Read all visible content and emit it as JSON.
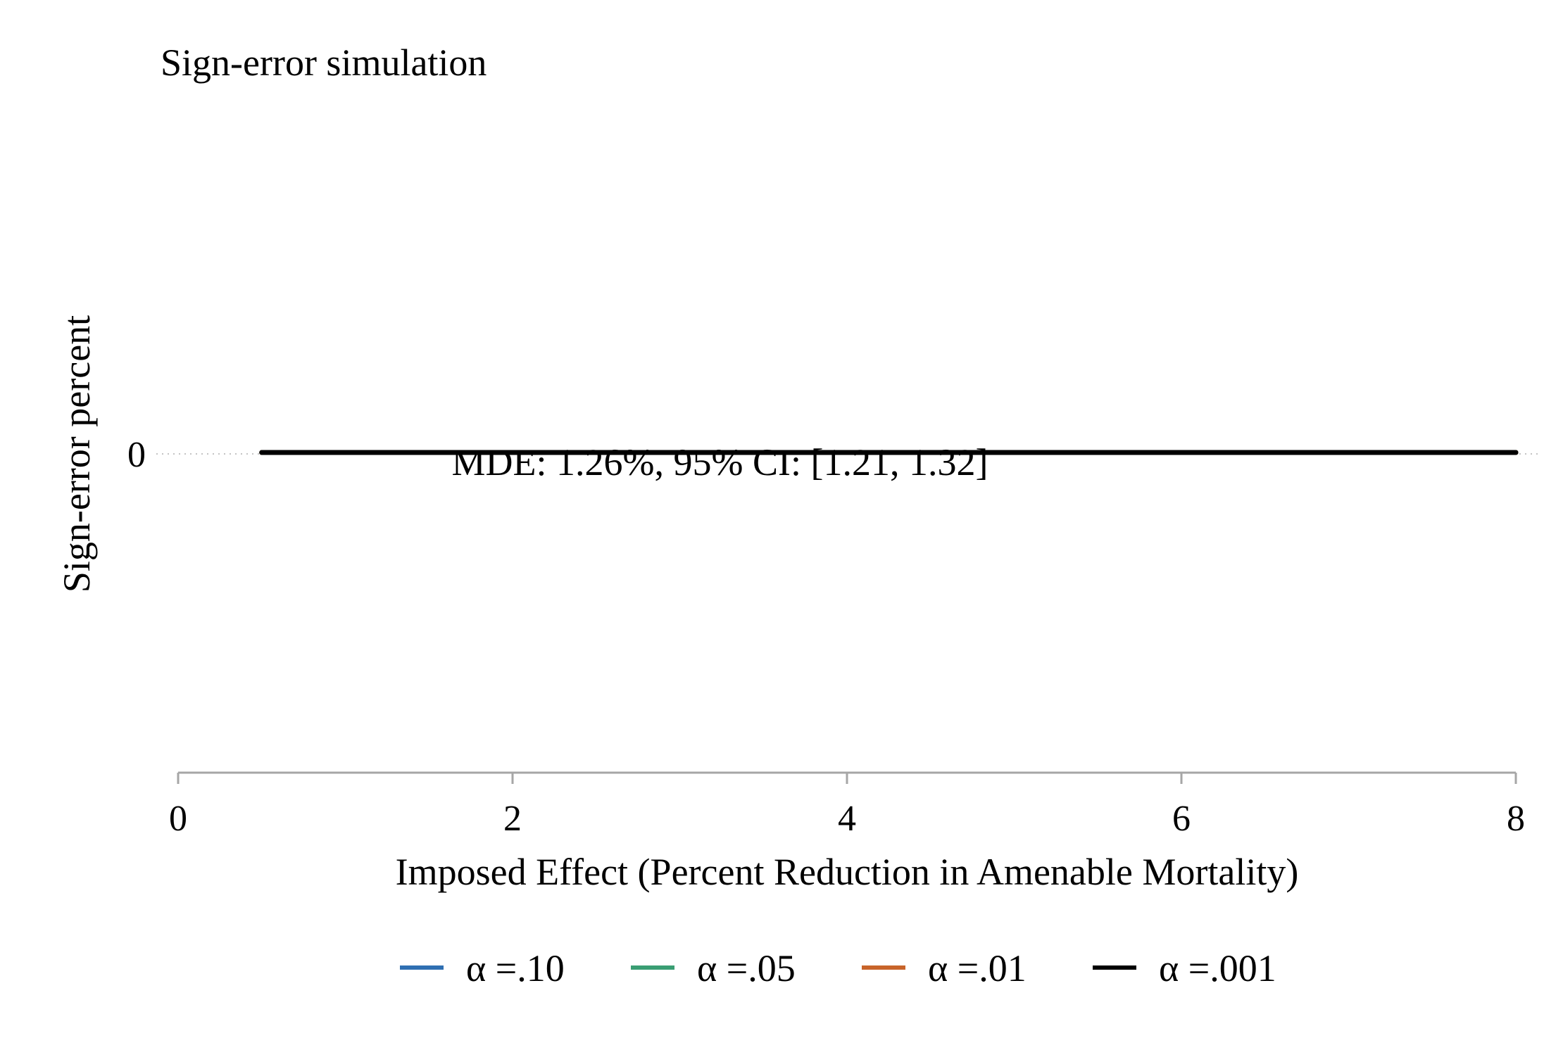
{
  "chart_data": {
    "type": "line",
    "title": "Sign-error simulation",
    "xlabel": "Imposed Effect (Percent Reduction in Amenable Mortality)",
    "ylabel": "Sign-error percent",
    "xlim": [
      0,
      8
    ],
    "x_ticks": [
      "0",
      "2",
      "4",
      "6",
      "8"
    ],
    "y_ticks": [
      "0"
    ],
    "grid": "y-only, dotted",
    "legend_position": "bottom",
    "series": [
      {
        "name": "α =.10",
        "color": "#2f6fb2",
        "x": [
          0.5,
          8
        ],
        "y": [
          0,
          0
        ]
      },
      {
        "name": "α =.05",
        "color": "#3a9e73",
        "x": [
          0.5,
          8
        ],
        "y": [
          0,
          0
        ]
      },
      {
        "name": "α =.01",
        "color": "#c8642a",
        "x": [
          0.5,
          8
        ],
        "y": [
          0,
          0
        ]
      },
      {
        "name": "α =.001",
        "color": "#000000",
        "x": [
          0.5,
          8
        ],
        "y": [
          0,
          0
        ]
      }
    ],
    "annotations": [
      {
        "text": "MDE: 1.26%, 95% CI: [1.21, 1.32]",
        "x": 1.4,
        "y": 0
      }
    ]
  }
}
